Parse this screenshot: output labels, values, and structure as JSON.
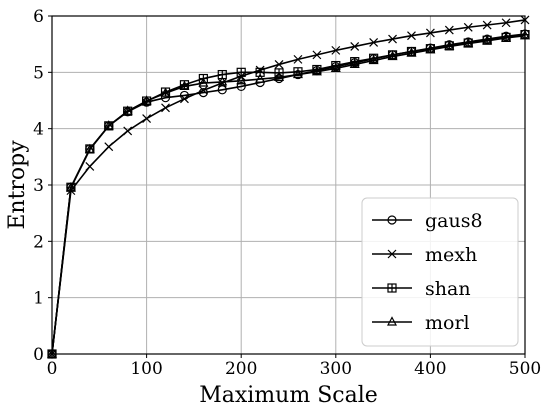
{
  "chart_data": {
    "type": "line",
    "xlabel": "Maximum Scale",
    "ylabel": "Entropy",
    "xlim": [
      0,
      500
    ],
    "ylim": [
      0,
      6
    ],
    "xticks": [
      0,
      100,
      200,
      300,
      400,
      500
    ],
    "yticks": [
      0,
      1,
      2,
      3,
      4,
      5,
      6
    ],
    "grid": true,
    "legend_position": "lower-right",
    "x": [
      0,
      20,
      40,
      60,
      80,
      100,
      120,
      140,
      160,
      180,
      200,
      220,
      240,
      260,
      280,
      300,
      320,
      340,
      360,
      380,
      400,
      420,
      440,
      460,
      480,
      500
    ],
    "series": [
      {
        "name": "gaus8",
        "marker": "circle",
        "values": [
          0,
          2.96,
          3.64,
          4.05,
          4.3,
          4.47,
          4.55,
          4.59,
          4.64,
          4.69,
          4.75,
          4.82,
          4.89,
          4.96,
          5.03,
          5.1,
          5.17,
          5.24,
          5.31,
          5.37,
          5.43,
          5.49,
          5.54,
          5.59,
          5.64,
          5.68
        ]
      },
      {
        "name": "mexh",
        "marker": "x",
        "values": [
          0,
          2.9,
          3.33,
          3.68,
          3.96,
          4.18,
          4.37,
          4.53,
          4.68,
          4.81,
          4.93,
          5.04,
          5.14,
          5.23,
          5.31,
          5.39,
          5.46,
          5.53,
          5.59,
          5.65,
          5.7,
          5.75,
          5.8,
          5.84,
          5.88,
          5.93
        ]
      },
      {
        "name": "shan",
        "marker": "plus-square",
        "values": [
          0,
          2.96,
          3.64,
          4.05,
          4.31,
          4.49,
          4.65,
          4.78,
          4.89,
          4.96,
          5.0,
          5.0,
          4.99,
          5.01,
          5.05,
          5.12,
          5.19,
          5.25,
          5.31,
          5.37,
          5.42,
          5.47,
          5.52,
          5.57,
          5.62,
          5.67
        ]
      },
      {
        "name": "morl",
        "marker": "triangle",
        "values": [
          0,
          2.95,
          3.63,
          4.05,
          4.31,
          4.49,
          4.63,
          4.75,
          4.81,
          4.83,
          4.85,
          4.88,
          4.91,
          4.96,
          5.01,
          5.07,
          5.14,
          5.21,
          5.28,
          5.34,
          5.4,
          5.46,
          5.51,
          5.56,
          5.61,
          5.65
        ]
      }
    ]
  }
}
